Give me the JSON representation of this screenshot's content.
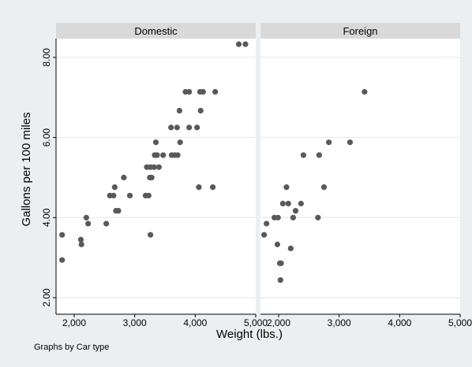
{
  "chart_data": {
    "type": "scatter",
    "ylabel": "Gallons per 100 miles",
    "xlabel": "Weight (lbs.)",
    "note": "Graphs by Car type",
    "xlim": [
      1700,
      5000
    ],
    "ylim": [
      2,
      8.5
    ],
    "xticks": [
      2000,
      3000,
      4000,
      5000
    ],
    "xtick_labels": [
      "2,000",
      "3,000",
      "4,000",
      "5,000"
    ],
    "yticks": [
      2,
      4,
      6,
      8
    ],
    "ytick_labels": [
      "2.00",
      "4.00",
      "6.00",
      "8.00"
    ],
    "marker_color": "#595959",
    "panels": [
      {
        "title": "Domestic",
        "points": [
          [
            4720,
            8.33
          ],
          [
            4830,
            8.33
          ],
          [
            3840,
            7.14
          ],
          [
            3900,
            7.14
          ],
          [
            4080,
            7.14
          ],
          [
            4130,
            7.14
          ],
          [
            4330,
            7.14
          ],
          [
            3740,
            6.67
          ],
          [
            4090,
            6.67
          ],
          [
            3600,
            6.25
          ],
          [
            3700,
            6.25
          ],
          [
            3900,
            6.25
          ],
          [
            4030,
            6.25
          ],
          [
            3350,
            5.88
          ],
          [
            3750,
            5.88
          ],
          [
            3330,
            5.56
          ],
          [
            3370,
            5.56
          ],
          [
            3470,
            5.56
          ],
          [
            3610,
            5.56
          ],
          [
            3660,
            5.56
          ],
          [
            3710,
            5.56
          ],
          [
            3200,
            5.26
          ],
          [
            3260,
            5.26
          ],
          [
            3320,
            5.26
          ],
          [
            3400,
            5.26
          ],
          [
            3250,
            5.0
          ],
          [
            3280,
            5.0
          ],
          [
            2820,
            5.0
          ],
          [
            2590,
            4.55
          ],
          [
            2650,
            4.55
          ],
          [
            2920,
            4.55
          ],
          [
            3180,
            4.55
          ],
          [
            3230,
            4.55
          ],
          [
            2670,
            4.76
          ],
          [
            4060,
            4.76
          ],
          [
            4290,
            4.76
          ],
          [
            2690,
            4.17
          ],
          [
            2730,
            4.17
          ],
          [
            2200,
            4.0
          ],
          [
            2230,
            3.85
          ],
          [
            2530,
            3.85
          ],
          [
            1800,
            3.57
          ],
          [
            3260,
            3.57
          ],
          [
            2110,
            3.45
          ],
          [
            2120,
            3.33
          ],
          [
            1800,
            2.94
          ]
        ]
      },
      {
        "title": "Foreign",
        "points": [
          [
            3420,
            7.14
          ],
          [
            2830,
            5.88
          ],
          [
            3180,
            5.88
          ],
          [
            2410,
            5.56
          ],
          [
            2670,
            5.56
          ],
          [
            2130,
            4.76
          ],
          [
            2750,
            4.76
          ],
          [
            2070,
            4.35
          ],
          [
            2160,
            4.35
          ],
          [
            2370,
            4.35
          ],
          [
            2280,
            4.17
          ],
          [
            1930,
            4.0
          ],
          [
            1990,
            4.0
          ],
          [
            2240,
            4.0
          ],
          [
            2650,
            4.0
          ],
          [
            1800,
            3.85
          ],
          [
            1760,
            3.57
          ],
          [
            1980,
            3.33
          ],
          [
            2200,
            3.23
          ],
          [
            2020,
            2.86
          ],
          [
            2040,
            2.86
          ],
          [
            2030,
            2.44
          ]
        ]
      }
    ]
  }
}
